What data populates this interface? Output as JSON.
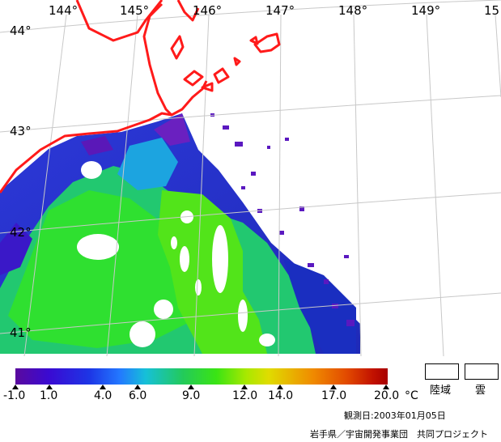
{
  "map": {
    "lon_labels": [
      "144°",
      "145°",
      "146°",
      "147°",
      "148°",
      "149°",
      "15"
    ],
    "lat_labels": [
      "44°",
      "43°",
      "42°",
      "41°"
    ],
    "coastline_color": "#ff0000",
    "gridline_color": "#c8c8c8"
  },
  "colorbar": {
    "tick_labels": [
      "-1.0",
      "1.0",
      "4.0",
      "6.0",
      "9.0",
      "12.0",
      "14.0",
      "17.0",
      "20.0"
    ],
    "unit": "°C"
  },
  "legend": {
    "land_label": "陸域",
    "cloud_label": "雲"
  },
  "observation_date": "観測日:2003年01月05日",
  "credit": "岩手県／宇宙開発事業団　共同プロジェクト"
}
